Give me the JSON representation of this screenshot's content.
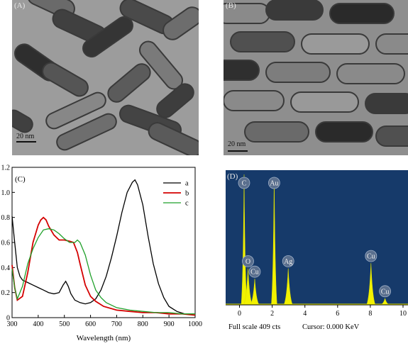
{
  "panels": {
    "A": {
      "label": "(A)",
      "scale_bar": "20 nm"
    },
    "B": {
      "label": "(B)",
      "scale_bar": "20 nm"
    },
    "C": {
      "label": "(C)"
    },
    "D": {
      "label": "(D)"
    }
  },
  "chart_data": [
    {
      "type": "line",
      "title": "",
      "xlabel": "Wavelength (nm)",
      "ylabel": "",
      "xlim": [
        300,
        1000
      ],
      "ylim": [
        0,
        1.2
      ],
      "xticks": [
        300,
        400,
        500,
        600,
        700,
        800,
        900,
        1000
      ],
      "yticks": [
        0,
        0.2,
        0.4,
        0.6,
        0.8,
        1.0,
        1.2
      ],
      "ytick_labels": [
        "0",
        "0.2",
        "0.4",
        "0.6",
        "0.8",
        "1.0",
        "1.2"
      ],
      "legend_position": "top-right",
      "series": [
        {
          "name": "a",
          "color": "#000000",
          "x": [
            300,
            310,
            320,
            330,
            340,
            360,
            380,
            400,
            420,
            440,
            460,
            480,
            495,
            505,
            515,
            525,
            540,
            560,
            580,
            600,
            620,
            640,
            660,
            680,
            700,
            720,
            740,
            760,
            770,
            780,
            800,
            820,
            840,
            860,
            880,
            900,
            930,
            960,
            1000
          ],
          "y": [
            0.81,
            0.6,
            0.4,
            0.33,
            0.3,
            0.28,
            0.26,
            0.24,
            0.22,
            0.2,
            0.19,
            0.2,
            0.26,
            0.29,
            0.25,
            0.19,
            0.14,
            0.12,
            0.11,
            0.12,
            0.15,
            0.22,
            0.33,
            0.48,
            0.65,
            0.84,
            1.0,
            1.08,
            1.1,
            1.06,
            0.9,
            0.65,
            0.43,
            0.27,
            0.16,
            0.09,
            0.05,
            0.03,
            0.02
          ]
        },
        {
          "name": "b",
          "color": "#d40000",
          "x": [
            300,
            310,
            320,
            340,
            360,
            380,
            400,
            410,
            420,
            430,
            440,
            460,
            480,
            500,
            520,
            535,
            550,
            560,
            580,
            600,
            620,
            650,
            700,
            750,
            800,
            850,
            900,
            950,
            1000
          ],
          "y": [
            0.42,
            0.24,
            0.14,
            0.17,
            0.36,
            0.6,
            0.74,
            0.78,
            0.8,
            0.78,
            0.73,
            0.66,
            0.62,
            0.62,
            0.61,
            0.6,
            0.52,
            0.43,
            0.26,
            0.17,
            0.13,
            0.09,
            0.06,
            0.05,
            0.04,
            0.04,
            0.03,
            0.03,
            0.02
          ]
        },
        {
          "name": "c",
          "color": "#1fa02a",
          "x": [
            300,
            310,
            320,
            340,
            360,
            380,
            400,
            420,
            440,
            460,
            480,
            500,
            520,
            540,
            550,
            560,
            580,
            600,
            620,
            640,
            660,
            700,
            750,
            800,
            850,
            900,
            950,
            1000
          ],
          "y": [
            0.39,
            0.24,
            0.15,
            0.25,
            0.43,
            0.55,
            0.64,
            0.7,
            0.71,
            0.7,
            0.67,
            0.63,
            0.6,
            0.6,
            0.62,
            0.6,
            0.5,
            0.34,
            0.22,
            0.16,
            0.12,
            0.08,
            0.06,
            0.05,
            0.04,
            0.04,
            0.03,
            0.03
          ]
        }
      ]
    },
    {
      "type": "area",
      "title": "",
      "xlabel": "",
      "ylabel": "",
      "xlim": [
        -0.5,
        10
      ],
      "xticks": [
        0,
        2,
        4,
        6,
        8,
        10
      ],
      "background": "#163a6a",
      "fill_color": "#f2f200",
      "footer_left": "Full scale 409 cts",
      "footer_right": "Cursor: 0.000 KeV",
      "peaks": [
        {
          "element": "C",
          "energy_kev": 0.28,
          "height": 1.0
        },
        {
          "element": "O",
          "energy_kev": 0.52,
          "height": 0.28
        },
        {
          "element": "Cu",
          "energy_kev": 0.93,
          "height": 0.2
        },
        {
          "element": "Au",
          "energy_kev": 2.12,
          "height": 0.98
        },
        {
          "element": "Ag",
          "energy_kev": 2.98,
          "height": 0.28
        },
        {
          "element": "Cu",
          "energy_kev": 8.04,
          "height": 0.32
        },
        {
          "element": "Cu",
          "energy_kev": 8.9,
          "height": 0.05
        }
      ]
    }
  ]
}
